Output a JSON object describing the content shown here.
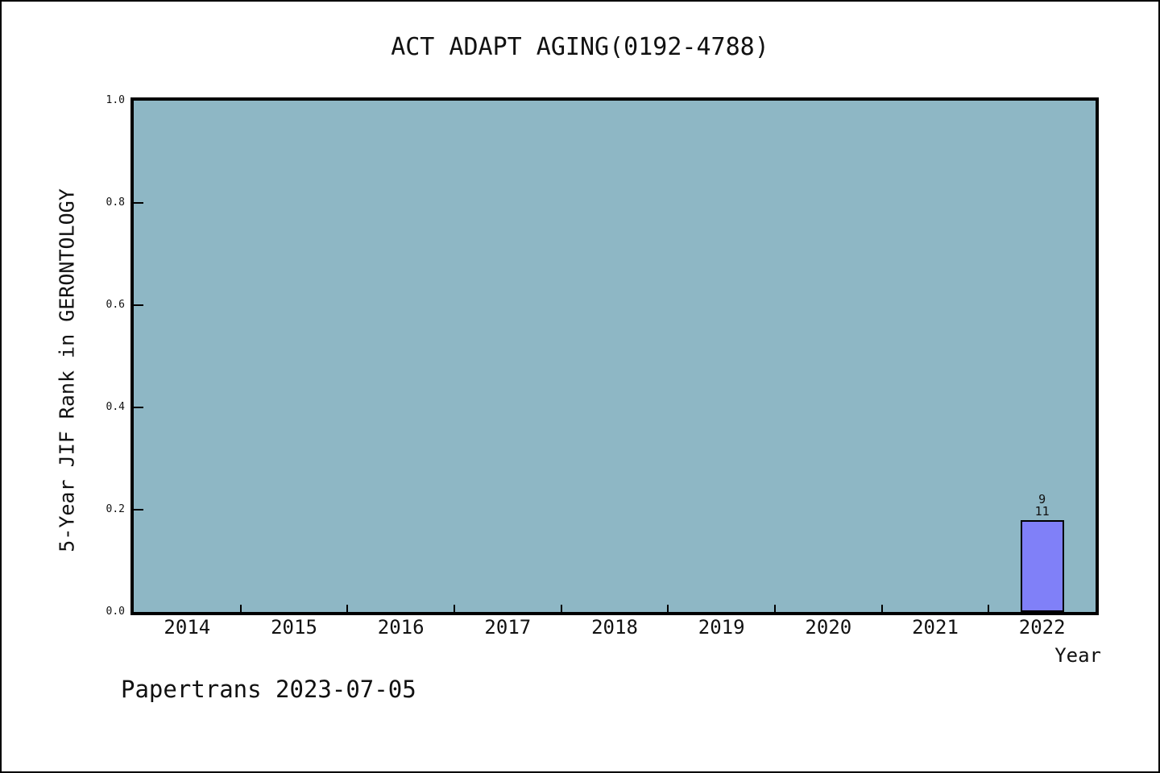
{
  "chart_data": {
    "type": "bar",
    "title": "ACT ADAPT AGING(0192-4788)",
    "xlabel": "Year",
    "ylabel": "5-Year JIF Rank in GERONTOLOGY",
    "categories": [
      "2014",
      "2015",
      "2016",
      "2017",
      "2018",
      "2019",
      "2020",
      "2021",
      "2022"
    ],
    "values": [
      null,
      null,
      null,
      null,
      null,
      null,
      null,
      null,
      0.18
    ],
    "ylim": [
      0.0,
      1.0
    ],
    "yticks": [
      0.0,
      0.2,
      0.4,
      0.6,
      0.8,
      1.0
    ],
    "ytick_labels": [
      "0.0",
      "0.2",
      "0.4",
      "0.6",
      "0.8",
      "1.0"
    ],
    "grid": "off",
    "legend": "none",
    "annotations": [
      {
        "category": "2022",
        "lines": [
          "9",
          "11"
        ]
      }
    ],
    "colors": {
      "bar_fill": "#8080F8",
      "bar_border": "#000000",
      "plot_background": "#8EB7C5",
      "text": "#111111",
      "page_background": "#FFFFFF",
      "frame_border": "#000000"
    }
  },
  "footer": {
    "text": "Papertrans 2023-07-05"
  }
}
